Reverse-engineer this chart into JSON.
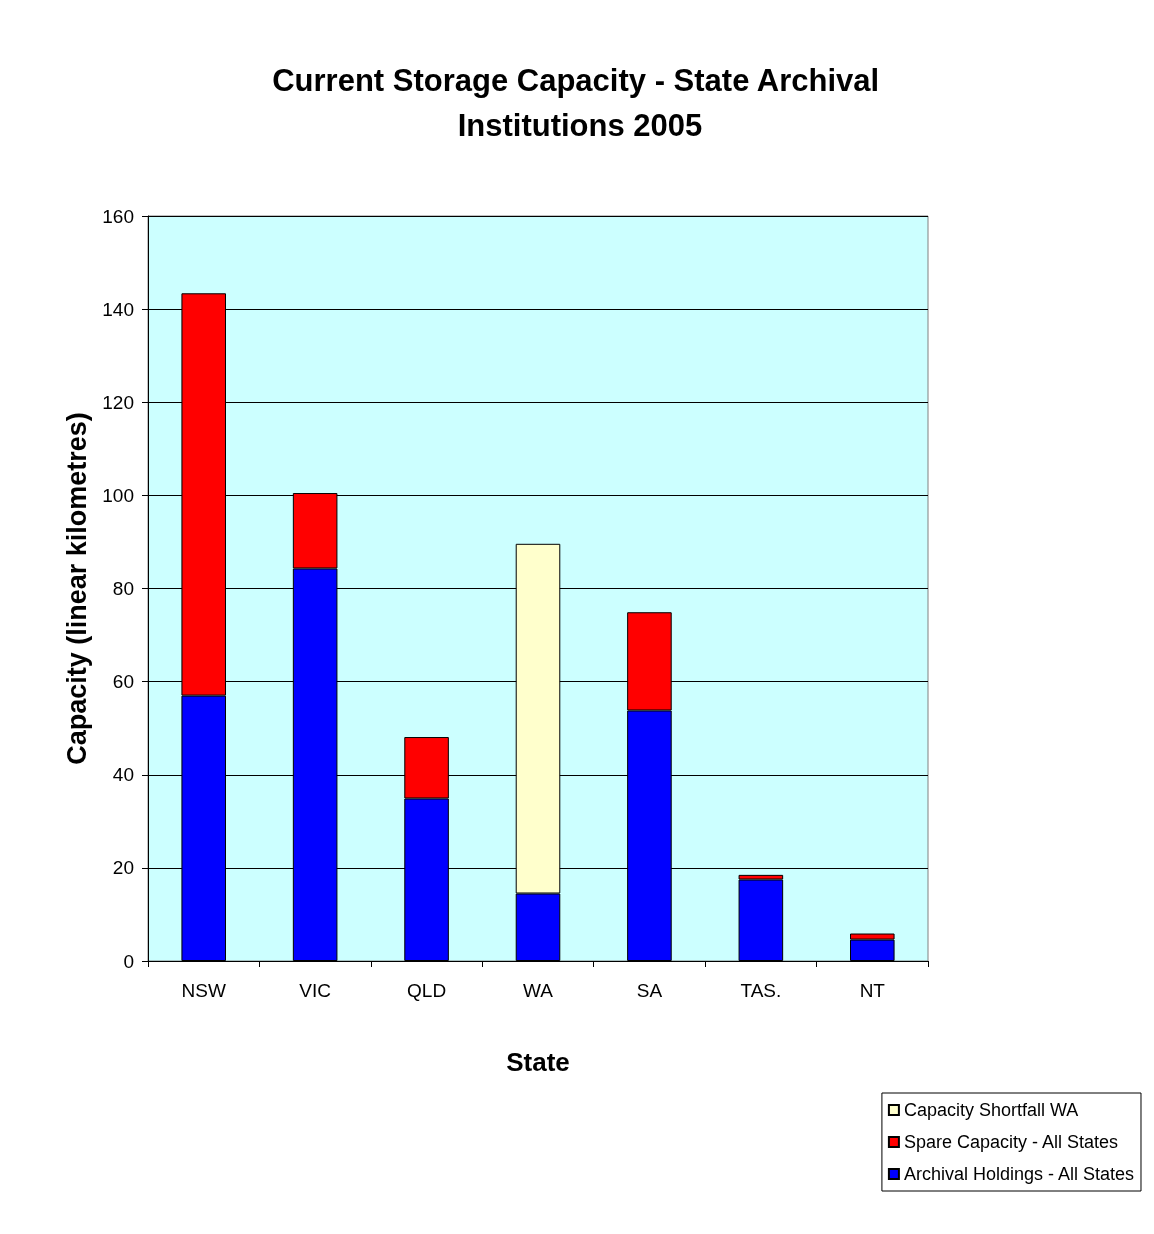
{
  "chart_data": {
    "type": "bar",
    "title": "Current Storage Capacity - State Archival Institutions 2005",
    "xlabel": "State",
    "ylabel": "Capacity (linear kilometres)",
    "categories": [
      "NSW",
      "VIC",
      "QLD",
      "WA",
      "SA",
      "TAS.",
      "NT"
    ],
    "stacked": true,
    "series": [
      {
        "name": "Archival Holdings - All States",
        "color": "#0000ff",
        "values": [
          57.0,
          84.3,
          34.9,
          14.5,
          53.8,
          17.5,
          4.6
        ]
      },
      {
        "name": "Spare Capacity - All States",
        "color": "#ff0000",
        "values": [
          86.4,
          16.2,
          13.2,
          null,
          21.1,
          1.0,
          1.3
        ]
      },
      {
        "name": "Capacity Shortfall WA",
        "color": "#ffffcc",
        "values": [
          null,
          null,
          null,
          75.1,
          null,
          null,
          null
        ]
      }
    ],
    "ylim": [
      0,
      160
    ],
    "yticks": [
      0,
      20,
      40,
      60,
      80,
      100,
      120,
      140,
      160
    ],
    "grid": "y",
    "legend": "bottom right"
  }
}
